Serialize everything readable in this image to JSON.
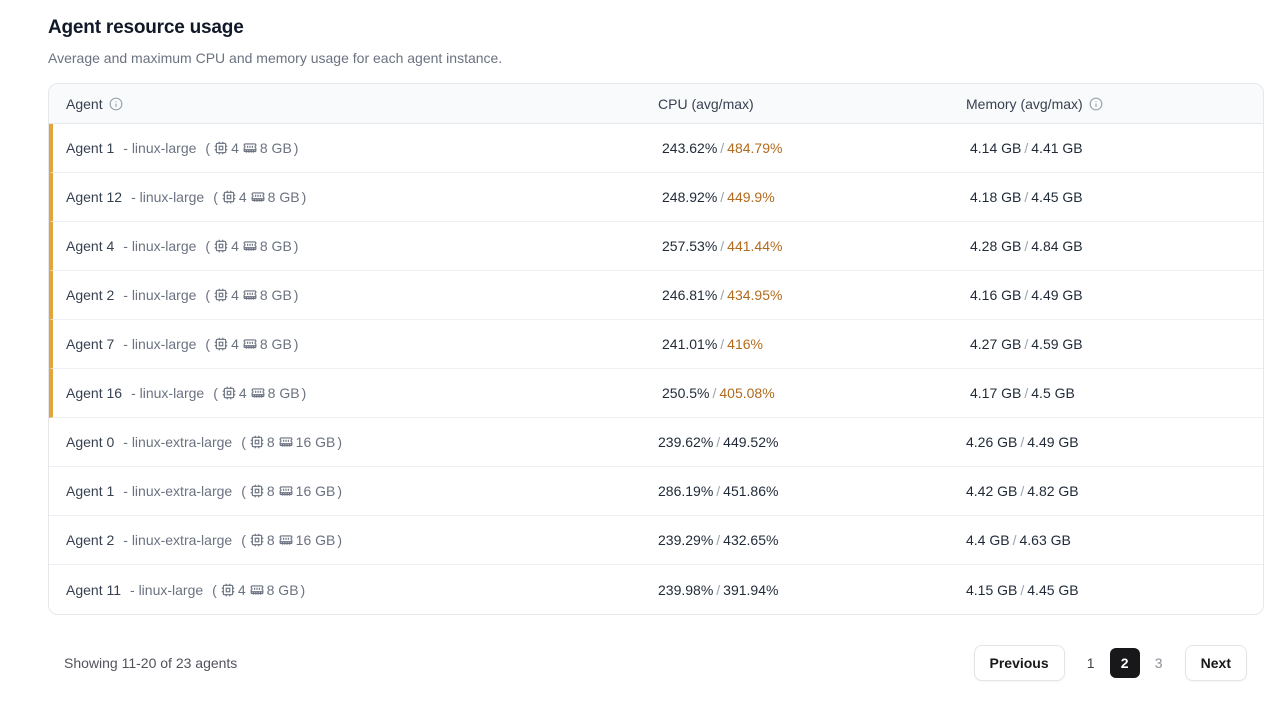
{
  "page": {
    "title": "Agent resource usage",
    "subtitle": "Average and maximum CPU and memory usage for each agent instance."
  },
  "table": {
    "columns": {
      "agent": "Agent",
      "cpu": "CPU (avg/max)",
      "memory": "Memory (avg/max)"
    },
    "rows": [
      {
        "name": "Agent 1",
        "type": "- linux-large",
        "cpus": "4",
        "mem": "8 GB",
        "cpu_avg": "243.62%",
        "cpu_max": "484.79%",
        "cpu_max_warn": true,
        "mem_avg": "4.14 GB",
        "mem_max": "4.41 GB",
        "highlight": true
      },
      {
        "name": "Agent 12",
        "type": "- linux-large",
        "cpus": "4",
        "mem": "8 GB",
        "cpu_avg": "248.92%",
        "cpu_max": "449.9%",
        "cpu_max_warn": true,
        "mem_avg": "4.18 GB",
        "mem_max": "4.45 GB",
        "highlight": true
      },
      {
        "name": "Agent 4",
        "type": "- linux-large",
        "cpus": "4",
        "mem": "8 GB",
        "cpu_avg": "257.53%",
        "cpu_max": "441.44%",
        "cpu_max_warn": true,
        "mem_avg": "4.28 GB",
        "mem_max": "4.84 GB",
        "highlight": true
      },
      {
        "name": "Agent 2",
        "type": "- linux-large",
        "cpus": "4",
        "mem": "8 GB",
        "cpu_avg": "246.81%",
        "cpu_max": "434.95%",
        "cpu_max_warn": true,
        "mem_avg": "4.16 GB",
        "mem_max": "4.49 GB",
        "highlight": true
      },
      {
        "name": "Agent 7",
        "type": "- linux-large",
        "cpus": "4",
        "mem": "8 GB",
        "cpu_avg": "241.01%",
        "cpu_max": "416%",
        "cpu_max_warn": true,
        "mem_avg": "4.27 GB",
        "mem_max": "4.59 GB",
        "highlight": true
      },
      {
        "name": "Agent 16",
        "type": "- linux-large",
        "cpus": "4",
        "mem": "8 GB",
        "cpu_avg": "250.5%",
        "cpu_max": "405.08%",
        "cpu_max_warn": true,
        "mem_avg": "4.17 GB",
        "mem_max": "4.5 GB",
        "highlight": true
      },
      {
        "name": "Agent 0",
        "type": "- linux-extra-large",
        "cpus": "8",
        "mem": "16 GB",
        "cpu_avg": "239.62%",
        "cpu_max": "449.52%",
        "cpu_max_warn": false,
        "mem_avg": "4.26 GB",
        "mem_max": "4.49 GB",
        "highlight": false
      },
      {
        "name": "Agent 1",
        "type": "- linux-extra-large",
        "cpus": "8",
        "mem": "16 GB",
        "cpu_avg": "286.19%",
        "cpu_max": "451.86%",
        "cpu_max_warn": false,
        "mem_avg": "4.42 GB",
        "mem_max": "4.82 GB",
        "highlight": false
      },
      {
        "name": "Agent 2",
        "type": "- linux-extra-large",
        "cpus": "8",
        "mem": "16 GB",
        "cpu_avg": "239.29%",
        "cpu_max": "432.65%",
        "cpu_max_warn": false,
        "mem_avg": "4.4 GB",
        "mem_max": "4.63 GB",
        "highlight": false
      },
      {
        "name": "Agent 11",
        "type": "- linux-large",
        "cpus": "4",
        "mem": "8 GB",
        "cpu_avg": "239.98%",
        "cpu_max": "391.94%",
        "cpu_max_warn": false,
        "mem_avg": "4.15 GB",
        "mem_max": "4.45 GB",
        "highlight": false
      }
    ]
  },
  "footer": {
    "showing": "Showing 11-20 of 23 agents",
    "previous_label": "Previous",
    "next_label": "Next",
    "pages": [
      {
        "label": "1",
        "active": false,
        "muted": false
      },
      {
        "label": "2",
        "active": true,
        "muted": false
      },
      {
        "label": "3",
        "active": false,
        "muted": true
      }
    ]
  },
  "colors": {
    "accent_amber": "#E2A53A",
    "warn_text": "#B26A1C",
    "header_bg": "#F9FAFB",
    "border": "#E5E7EB",
    "active_page_bg": "#18181B"
  }
}
